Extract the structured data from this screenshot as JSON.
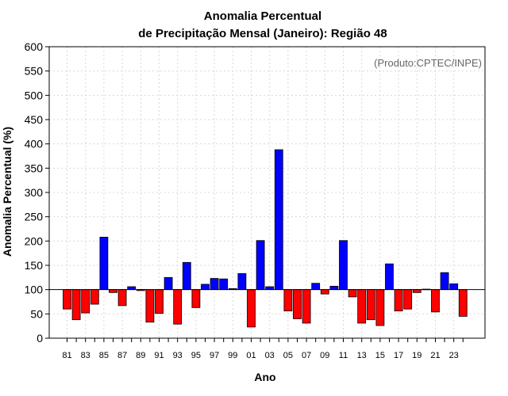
{
  "chart_data": {
    "type": "bar",
    "title": [
      "Anomalia Percentual",
      "de Precipitação Mensal (Janeiro): Região 48"
    ],
    "xlabel": "Ano",
    "ylabel": "Anomalia Percentual (%)",
    "annotation": "(Produto:CPTEC/INPE)",
    "baseline": 100,
    "ylim": [
      0,
      600
    ],
    "yticks": [
      0,
      50,
      100,
      150,
      200,
      250,
      300,
      350,
      400,
      450,
      500,
      550,
      600
    ],
    "grid": true,
    "colors": {
      "above": "#0000ff",
      "below": "#ff0000"
    },
    "categories": [
      "81",
      "82",
      "83",
      "84",
      "85",
      "86",
      "87",
      "88",
      "89",
      "90",
      "91",
      "92",
      "93",
      "94",
      "95",
      "96",
      "97",
      "98",
      "99",
      "00",
      "01",
      "02",
      "03",
      "04",
      "05",
      "06",
      "07",
      "08",
      "09",
      "10",
      "11",
      "12",
      "13",
      "14",
      "15",
      "16",
      "17",
      "18",
      "19",
      "20",
      "21",
      "22",
      "23",
      "24"
    ],
    "xtick_labels": [
      "81",
      "83",
      "85",
      "87",
      "89",
      "91",
      "93",
      "95",
      "97",
      "99",
      "01",
      "03",
      "05",
      "07",
      "09",
      "11",
      "13",
      "15",
      "17",
      "19",
      "21",
      "23"
    ],
    "values": [
      60,
      38,
      52,
      70,
      208,
      94,
      67,
      106,
      98,
      33,
      51,
      125,
      29,
      156,
      63,
      111,
      123,
      122,
      102,
      133,
      23,
      201,
      106,
      388,
      56,
      40,
      31,
      113,
      91,
      107,
      201,
      85,
      31,
      38,
      26,
      153,
      56,
      60,
      94,
      101,
      54,
      135,
      112,
      45
    ]
  }
}
